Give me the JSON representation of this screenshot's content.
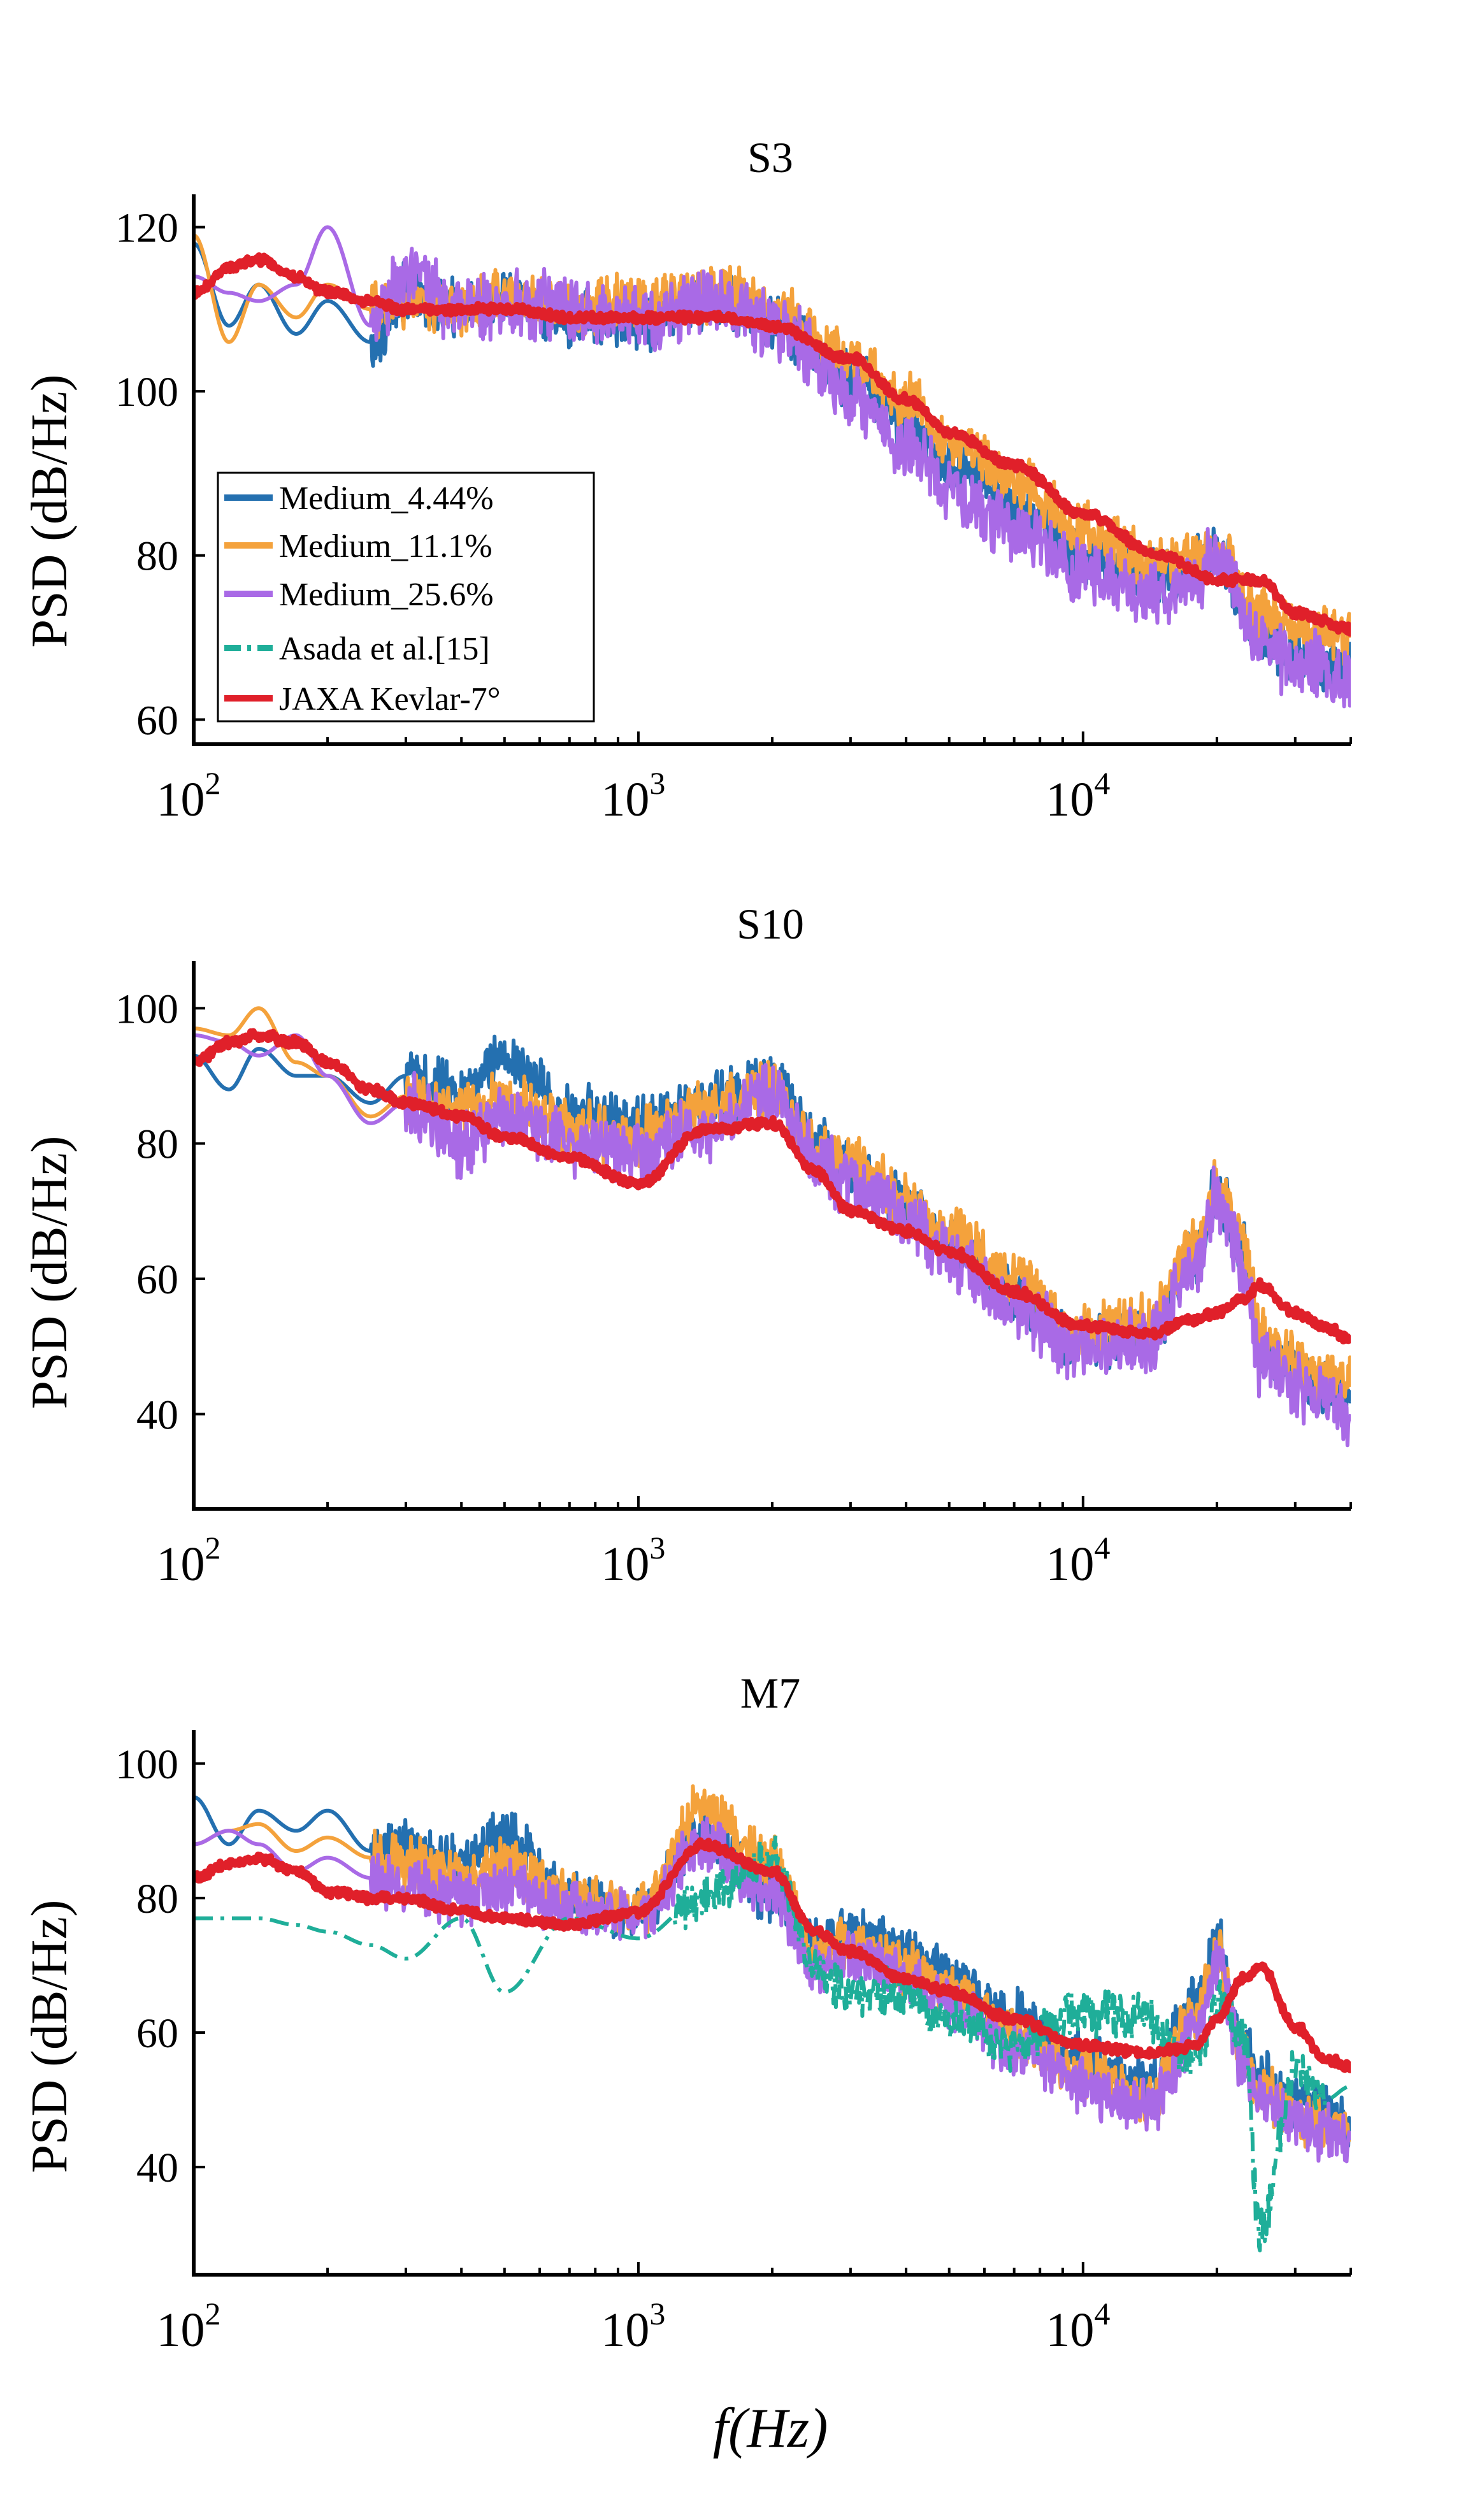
{
  "figure": {
    "xlabel": "f(Hz)",
    "ylabel": "PSD (dB/Hz)",
    "x_scale": "log",
    "xlim": [
      100,
      40000
    ],
    "x_ticks": [
      {
        "base": "10",
        "exp": "2",
        "value": 100
      },
      {
        "base": "10",
        "exp": "3",
        "value": 1000
      },
      {
        "base": "10",
        "exp": "4",
        "value": 10000
      }
    ]
  },
  "legend": {
    "location": "lower-left of top panel",
    "entries": [
      {
        "label": "Medium_4.44%",
        "color": "#2470b0",
        "dash": "solid"
      },
      {
        "label": "Medium_11.1%",
        "color": "#f4a23c",
        "dash": "solid"
      },
      {
        "label": "Medium_25.6%",
        "color": "#a96ae6",
        "dash": "solid"
      },
      {
        "label": "Asada et al.[15]",
        "color": "#1fae99",
        "dash": "dashdot"
      },
      {
        "label": "JAXA Kevlar-7°",
        "color": "#e0202a",
        "dash": "solid"
      }
    ]
  },
  "chart_data": [
    {
      "type": "line",
      "title": "S3",
      "xlabel": "",
      "ylabel": "PSD (dB/Hz)",
      "x_scale": "log",
      "xlim": [
        100,
        40000
      ],
      "ylim": [
        57,
        124
      ],
      "y_ticks": [
        60,
        80,
        100,
        120
      ],
      "x": [
        100,
        120,
        140,
        170,
        200,
        250,
        300,
        400,
        500,
        700,
        1000,
        1500,
        2000,
        3000,
        4000,
        5000,
        7000,
        10000,
        15000,
        20000,
        25000,
        30000,
        40000
      ],
      "series": [
        {
          "name": "Medium_4.44%",
          "values": [
            118,
            108,
            113,
            107,
            111,
            106,
            112,
            110,
            112,
            109,
            108,
            111,
            108,
            102,
            96,
            91,
            86,
            80,
            77,
            80,
            70,
            68,
            66
          ],
          "noise": 2.5,
          "noise_start_hz": 250,
          "noise_end_hz": 40000
        },
        {
          "name": "Medium_11.1%",
          "values": [
            119,
            106,
            113,
            109,
            113,
            110,
            111,
            110,
            112,
            110,
            111,
            112,
            110,
            104,
            99,
            94,
            89,
            83,
            79,
            80,
            73,
            71,
            70
          ],
          "noise": 2.5,
          "noise_start_hz": 250,
          "noise_end_hz": 40000
        },
        {
          "name": "Medium_25.6%",
          "values": [
            114,
            112,
            111,
            113,
            120,
            108,
            114,
            110,
            111,
            110,
            109,
            111,
            108,
            100,
            93,
            88,
            83,
            78,
            75,
            79,
            69,
            67,
            65
          ],
          "noise": 3,
          "noise_start_hz": 250,
          "noise_end_hz": 40000
        },
        {
          "name": "JAXA Kevlar-7°",
          "values": [
            112,
            115,
            116,
            114,
            112,
            111,
            110,
            110,
            110,
            109,
            109,
            109,
            108,
            104,
            99,
            95,
            91,
            85,
            80,
            77,
            77,
            73,
            71
          ],
          "noise": 0.4,
          "noise_start_hz": 100,
          "noise_end_hz": 40000
        }
      ]
    },
    {
      "type": "line",
      "title": "S10",
      "xlabel": "",
      "ylabel": "PSD (dB/Hz)",
      "x_scale": "log",
      "xlim": [
        100,
        40000
      ],
      "ylim": [
        26,
        107
      ],
      "y_ticks": [
        40,
        60,
        80,
        100
      ],
      "x": [
        100,
        120,
        140,
        170,
        200,
        250,
        300,
        400,
        500,
        700,
        1000,
        1400,
        2000,
        2500,
        3000,
        4000,
        5000,
        7000,
        10000,
        14000,
        18000,
        20000,
        23000,
        25000,
        30000,
        35000,
        40000
      ],
      "series": [
        {
          "name": "Medium_4.44%",
          "values": [
            93,
            88,
            94,
            90,
            90,
            86,
            90,
            88,
            93,
            85,
            83,
            86,
            90,
            80,
            76,
            71,
            65,
            58,
            50,
            52,
            63,
            73,
            64,
            50,
            46,
            44,
            42
          ],
          "noise": 3,
          "noise_start_hz": 300,
          "noise_end_hz": 40000
        },
        {
          "name": "Medium_11.1%",
          "values": [
            97,
            96,
            100,
            92,
            90,
            84,
            87,
            85,
            87,
            82,
            81,
            85,
            88,
            80,
            77,
            72,
            67,
            60,
            52,
            54,
            65,
            74,
            66,
            52,
            48,
            46,
            44
          ],
          "noise": 3,
          "noise_start_hz": 300,
          "noise_end_hz": 40000
        },
        {
          "name": "Medium_25.6%",
          "values": [
            96,
            95,
            93,
            96,
            90,
            83,
            86,
            80,
            84,
            80,
            78,
            82,
            87,
            78,
            74,
            69,
            63,
            56,
            49,
            51,
            62,
            72,
            63,
            48,
            44,
            42,
            40
          ],
          "noise": 3.5,
          "noise_start_hz": 300,
          "noise_end_hz": 40000
        },
        {
          "name": "JAXA Kevlar-7°",
          "values": [
            92,
            95,
            96,
            95,
            92,
            88,
            86,
            84,
            81,
            78,
            74,
            82,
            83,
            76,
            70,
            67,
            64,
            58,
            53,
            52,
            54,
            55,
            57,
            59,
            55,
            53,
            51
          ],
          "noise": 0.5,
          "noise_start_hz": 100,
          "noise_end_hz": 40000
        }
      ]
    },
    {
      "type": "line",
      "title": "M7",
      "xlabel": "f(Hz)",
      "ylabel": "PSD (dB/Hz)",
      "x_scale": "log",
      "xlim": [
        100,
        40000
      ],
      "ylim": [
        24,
        105
      ],
      "y_ticks": [
        40,
        60,
        80,
        100
      ],
      "x": [
        100,
        120,
        140,
        170,
        200,
        250,
        300,
        400,
        500,
        700,
        1000,
        1400,
        2000,
        2500,
        3000,
        4000,
        5000,
        7000,
        10000,
        14000,
        18000,
        20000,
        23000,
        25000,
        30000,
        35000,
        40000
      ],
      "series": [
        {
          "name": "Medium_4.44%",
          "values": [
            95,
            88,
            93,
            90,
            93,
            87,
            87,
            85,
            89,
            80,
            78,
            90,
            80,
            73,
            75,
            72,
            68,
            62,
            56,
            52,
            65,
            73,
            58,
            53,
            50,
            48,
            47
          ],
          "noise": 3,
          "noise_start_hz": 250,
          "noise_end_hz": 40000
        },
        {
          "name": "Medium_11.1%",
          "values": [
            88,
            90,
            91,
            87,
            89,
            86,
            85,
            83,
            85,
            80,
            78,
            94,
            85,
            72,
            73,
            70,
            66,
            60,
            54,
            50,
            63,
            72,
            56,
            51,
            48,
            46,
            45
          ],
          "noise": 3,
          "noise_start_hz": 250,
          "noise_end_hz": 40000
        },
        {
          "name": "Medium_25.6%",
          "values": [
            88,
            90,
            88,
            84,
            86,
            83,
            82,
            80,
            82,
            79,
            77,
            88,
            80,
            70,
            71,
            68,
            64,
            58,
            52,
            49,
            60,
            71,
            55,
            50,
            47,
            45,
            44
          ],
          "noise": 3,
          "noise_start_hz": 250,
          "noise_end_hz": 40000
        },
        {
          "name": "Asada et al.[15]",
          "values": [
            77,
            77,
            77,
            76,
            75,
            73,
            71,
            77,
            66,
            77,
            74,
            80,
            86,
            70,
            66,
            66,
            62,
            58,
            63,
            62,
            55,
            65,
            60,
            30,
            55,
            50,
            52
          ],
          "noise": 2.5,
          "noise_start_hz": 1200,
          "noise_end_hz": 35000
        },
        {
          "name": "JAXA Kevlar-7°",
          "values": [
            83,
            85,
            86,
            84,
            81,
            80,
            80,
            78,
            77,
            76,
            78,
            88,
            84,
            75,
            72,
            68,
            66,
            62,
            58,
            57,
            58,
            62,
            68,
            70,
            61,
            56,
            55
          ],
          "noise": 0.5,
          "noise_start_hz": 100,
          "noise_end_hz": 40000
        }
      ]
    }
  ]
}
